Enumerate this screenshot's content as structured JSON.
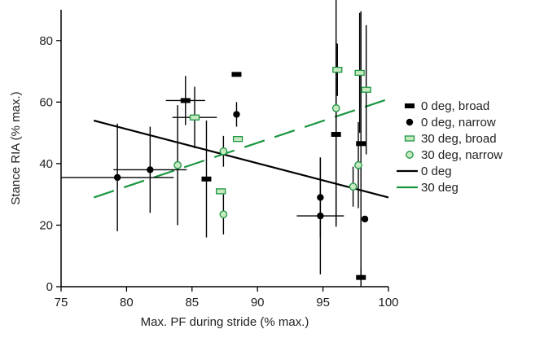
{
  "chart_data": {
    "type": "scatter",
    "title": "",
    "xlabel": "Max. PF during stride (% max.)",
    "ylabel": "Stance RIA (% max.)",
    "xlim": [
      75,
      100
    ],
    "ylim": [
      0,
      90
    ],
    "xticks": [
      75,
      80,
      85,
      90,
      95,
      100
    ],
    "yticks": [
      0,
      20,
      40,
      60,
      80
    ],
    "grid": false,
    "legend_position": "right",
    "colors": {
      "black": "#000000",
      "green": "#1a9641",
      "green_fill": "#c7e9c0"
    },
    "series": [
      {
        "name": "0 deg, broad",
        "marker": "bar",
        "points": [
          {
            "x": 84.5,
            "y": 60.5,
            "xerr": [
              1.5,
              1.5
            ],
            "yerr": [
              8,
              8
            ]
          },
          {
            "x": 86.1,
            "y": 35,
            "xerr": [
              0,
              0
            ],
            "yerr": [
              19,
              19
            ]
          },
          {
            "x": 88.4,
            "y": 69,
            "xerr": [
              0,
              0
            ],
            "yerr": [
              0,
              0
            ]
          },
          {
            "x": 96.0,
            "y": 49.5,
            "xerr": [
              0,
              0
            ],
            "yerr": [
              30,
              30
            ]
          },
          {
            "x": 97.9,
            "y": 46.5,
            "xerr": [
              0,
              0
            ],
            "yerr": [
              43,
              43
            ]
          },
          {
            "x": 97.9,
            "y": 3,
            "xerr": [
              0,
              0
            ],
            "yerr": [
              3,
              3
            ]
          }
        ]
      },
      {
        "name": "0 deg, narrow",
        "marker": "circle-filled",
        "points": [
          {
            "x": 79.3,
            "y": 35.5,
            "xerr": [
              4.3,
              4.3
            ],
            "yerr": [
              17.5,
              17.5
            ]
          },
          {
            "x": 81.8,
            "y": 38,
            "xerr": [
              2.8,
              2.8
            ],
            "yerr": [
              14,
              14
            ]
          },
          {
            "x": 88.4,
            "y": 56,
            "xerr": [
              0,
              0
            ],
            "yerr": [
              4,
              4
            ]
          },
          {
            "x": 94.8,
            "y": 29,
            "xerr": [
              0,
              0
            ],
            "yerr": [
              13,
              13
            ]
          },
          {
            "x": 94.8,
            "y": 23,
            "xerr": [
              1.8,
              1.8
            ],
            "yerr": [
              19,
              19
            ]
          },
          {
            "x": 98.2,
            "y": 22,
            "xerr": [
              0,
              0
            ],
            "yerr": [
              0,
              0
            ]
          }
        ]
      },
      {
        "name": "30 deg, broad",
        "marker": "rect-open",
        "points": [
          {
            "x": 85.2,
            "y": 55,
            "xerr": [
              1.7,
              1.7
            ],
            "yerr": [
              10,
              10
            ]
          },
          {
            "x": 87.2,
            "y": 31,
            "xerr": [
              0,
              0
            ],
            "yerr": [
              0,
              0
            ]
          },
          {
            "x": 88.5,
            "y": 48,
            "xerr": [
              0,
              0
            ],
            "yerr": [
              0,
              0
            ]
          },
          {
            "x": 96.1,
            "y": 70.5,
            "xerr": [
              0,
              0
            ],
            "yerr": [
              8.5,
              8.5
            ]
          },
          {
            "x": 97.8,
            "y": 69.5,
            "xerr": [
              0,
              0
            ],
            "yerr": [
              19.5,
              19.5
            ]
          },
          {
            "x": 98.3,
            "y": 64,
            "xerr": [
              0,
              0
            ],
            "yerr": [
              21,
              21
            ]
          }
        ]
      },
      {
        "name": "30 deg, narrow",
        "marker": "circle-open",
        "points": [
          {
            "x": 83.9,
            "y": 39.5,
            "xerr": [
              0,
              0
            ],
            "yerr": [
              19.5,
              19.5
            ]
          },
          {
            "x": 87.4,
            "y": 44,
            "xerr": [
              0,
              0
            ],
            "yerr": [
              5,
              5
            ]
          },
          {
            "x": 87.4,
            "y": 23.5,
            "xerr": [
              0,
              0
            ],
            "yerr": [
              6.5,
              6.5
            ]
          },
          {
            "x": 96.0,
            "y": 58,
            "xerr": [
              0,
              0
            ],
            "yerr": [
              38,
              38
            ]
          },
          {
            "x": 97.3,
            "y": 32.5,
            "xerr": [
              0,
              0
            ],
            "yerr": [
              6.5,
              6.5
            ]
          },
          {
            "x": 97.7,
            "y": 39.5,
            "xerr": [
              0,
              0
            ],
            "yerr": [
              14,
              14
            ]
          }
        ]
      }
    ],
    "lines": [
      {
        "name": "0 deg",
        "style": "solid",
        "x": [
          77.5,
          100
        ],
        "y": [
          54,
          29
        ]
      },
      {
        "name": "30 deg",
        "style": "dashed",
        "x": [
          77.5,
          100
        ],
        "y": [
          29,
          61
        ]
      }
    ]
  }
}
